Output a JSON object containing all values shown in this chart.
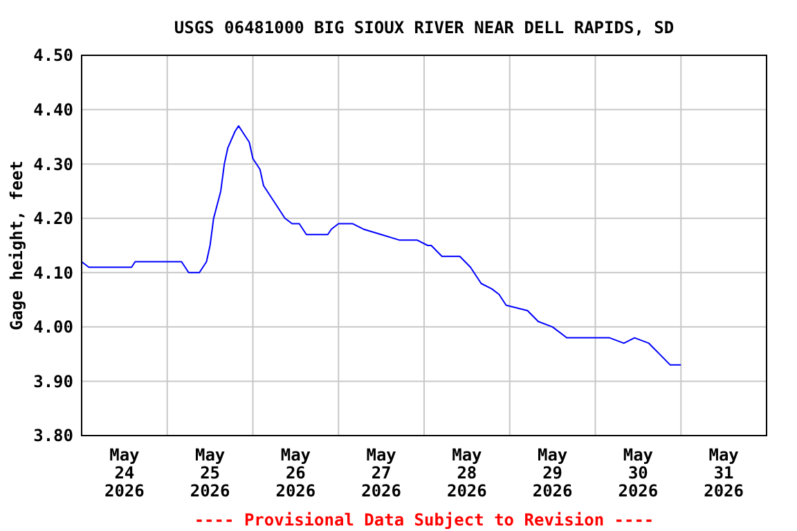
{
  "chart_data": {
    "type": "line",
    "title": "USGS 06481000 BIG SIOUX RIVER NEAR DELL RAPIDS, SD",
    "ylabel": "Gage height, feet",
    "annotations": [
      "---- Provisional Data Subject to Revision ----"
    ],
    "xlim": [
      "2026-05-24T00:00",
      "2026-06-01T00:00"
    ],
    "xticks": [
      {
        "value": "2026-05-24T12:00",
        "label": "May\n24\n2026"
      },
      {
        "value": "2026-05-25T00:00",
        "label": null
      },
      {
        "value": "2026-05-25T12:00",
        "label": "May\n25\n2026"
      },
      {
        "value": "2026-05-26T00:00",
        "label": null
      },
      {
        "value": "2026-05-26T12:00",
        "label": "May\n26\n2026"
      },
      {
        "value": "2026-05-27T00:00",
        "label": null
      },
      {
        "value": "2026-05-27T12:00",
        "label": "May\n27\n2026"
      },
      {
        "value": "2026-05-28T00:00",
        "label": null
      },
      {
        "value": "2026-05-28T12:00",
        "label": "May\n28\n2026"
      },
      {
        "value": "2026-05-29T00:00",
        "label": null
      },
      {
        "value": "2026-05-29T12:00",
        "label": "May\n29\n2026"
      },
      {
        "value": "2026-05-30T00:00",
        "label": null
      },
      {
        "value": "2026-05-30T12:00",
        "label": "May\n30\n2026"
      },
      {
        "value": "2026-05-31T00:00",
        "label": null
      },
      {
        "value": "2026-05-31T12:00",
        "label": "May\n31\n2026"
      }
    ],
    "ylim": [
      3.8,
      4.5
    ],
    "yticks": [
      {
        "value": 3.8,
        "label": "3.80"
      },
      {
        "value": 3.9,
        "label": "3.90"
      },
      {
        "value": 4.0,
        "label": "4.00"
      },
      {
        "value": 4.1,
        "label": "4.10"
      },
      {
        "value": 4.2,
        "label": "4.20"
      },
      {
        "value": 4.3,
        "label": "4.30"
      },
      {
        "value": 4.4,
        "label": "4.40"
      },
      {
        "value": 4.5,
        "label": "4.50"
      }
    ],
    "grid": true,
    "series": [
      {
        "color": "#0000ff",
        "x": [
          "2026-05-24T00:00",
          "2026-05-24T02:00",
          "2026-05-24T14:00",
          "2026-05-24T15:00",
          "2026-05-24T20:00",
          "2026-05-25T00:00",
          "2026-05-25T04:00",
          "2026-05-25T06:00",
          "2026-05-25T09:00",
          "2026-05-25T11:00",
          "2026-05-25T12:00",
          "2026-05-25T13:00",
          "2026-05-25T15:00",
          "2026-05-25T16:00",
          "2026-05-25T17:00",
          "2026-05-25T19:00",
          "2026-05-25T20:00",
          "2026-05-25T21:00",
          "2026-05-25T23:00",
          "2026-05-26T00:00",
          "2026-05-26T02:00",
          "2026-05-26T03:00",
          "2026-05-26T05:00",
          "2026-05-26T07:00",
          "2026-05-26T09:00",
          "2026-05-26T11:00",
          "2026-05-26T13:00",
          "2026-05-26T15:00",
          "2026-05-26T21:00",
          "2026-05-26T22:00",
          "2026-05-27T00:00",
          "2026-05-27T04:00",
          "2026-05-27T07:00",
          "2026-05-27T12:00",
          "2026-05-27T17:00",
          "2026-05-27T22:00",
          "2026-05-28T01:00",
          "2026-05-28T02:00",
          "2026-05-28T05:00",
          "2026-05-28T10:00",
          "2026-05-28T13:00",
          "2026-05-28T16:00",
          "2026-05-28T19:00",
          "2026-05-28T21:00",
          "2026-05-28T23:00",
          "2026-05-29T05:00",
          "2026-05-29T08:00",
          "2026-05-29T12:00",
          "2026-05-29T16:00",
          "2026-05-29T21:00",
          "2026-05-30T04:00",
          "2026-05-30T08:00",
          "2026-05-30T11:00",
          "2026-05-30T15:00",
          "2026-05-30T18:00",
          "2026-05-30T21:00",
          "2026-05-31T00:00"
        ],
        "values": [
          4.12,
          4.11,
          4.11,
          4.12,
          4.12,
          4.12,
          4.12,
          4.1,
          4.1,
          4.12,
          4.15,
          4.2,
          4.25,
          4.3,
          4.33,
          4.36,
          4.37,
          4.36,
          4.34,
          4.31,
          4.29,
          4.26,
          4.24,
          4.22,
          4.2,
          4.19,
          4.19,
          4.17,
          4.17,
          4.18,
          4.19,
          4.19,
          4.18,
          4.17,
          4.16,
          4.16,
          4.15,
          4.15,
          4.13,
          4.13,
          4.11,
          4.08,
          4.07,
          4.06,
          4.04,
          4.03,
          4.01,
          4.0,
          3.98,
          3.98,
          3.98,
          3.97,
          3.98,
          3.97,
          3.95,
          3.93,
          3.93
        ]
      }
    ]
  }
}
